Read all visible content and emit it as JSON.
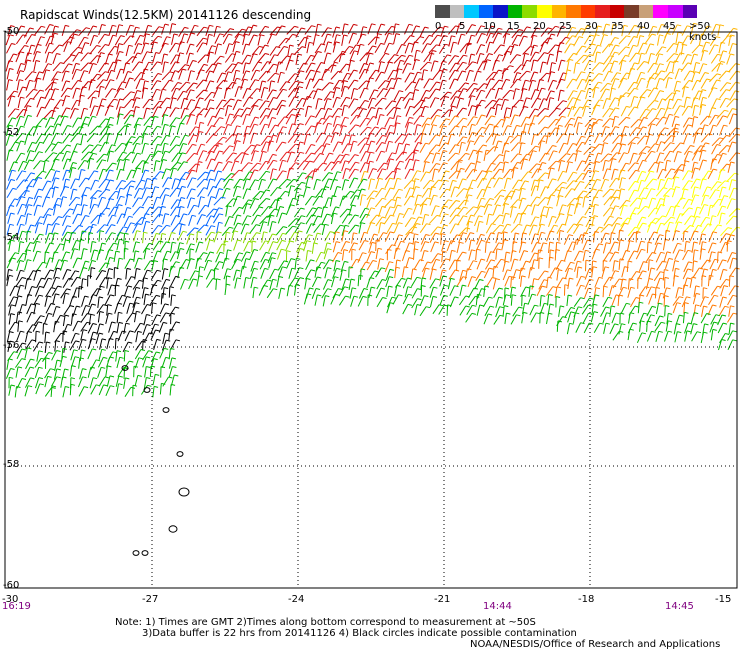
{
  "title": "Rapidscat Winds(12.5KM) 20141126 descending",
  "legend": {
    "colors": [
      "#4d4d4d",
      "#bfbfbf",
      "#00c8ff",
      "#0064ff",
      "#0a14c8",
      "#00b400",
      "#8cdc00",
      "#ffff00",
      "#ffb400",
      "#ff7800",
      "#ff3c00",
      "#e61e1e",
      "#c80000",
      "#783c28",
      "#c8a078",
      "#ff00ff",
      "#c800ff",
      "#5a00b4"
    ],
    "labels": [
      "0",
      "5",
      "10",
      "15",
      "20",
      "25",
      "30",
      "35",
      "40",
      "45",
      ">50 knots"
    ]
  },
  "axes": {
    "lat_labels": [
      "-50",
      "-52",
      "-54",
      "-56",
      "-58",
      "-60"
    ],
    "lon_labels": [
      "-30",
      "-27",
      "-24",
      "-21",
      "-18",
      "-15"
    ],
    "times": [
      "16:19",
      "14:44",
      "14:45"
    ]
  },
  "notes": {
    "line1": "Note: 1) Times are GMT 2)Times along bottom correspond to measurement at ~50S",
    "line2": "3)Data buffer is 22 hrs from 20141126 4) Black circles indicate possible contamination",
    "line3": "NOAA/NESDIS/Office of Research and Applications"
  }
}
